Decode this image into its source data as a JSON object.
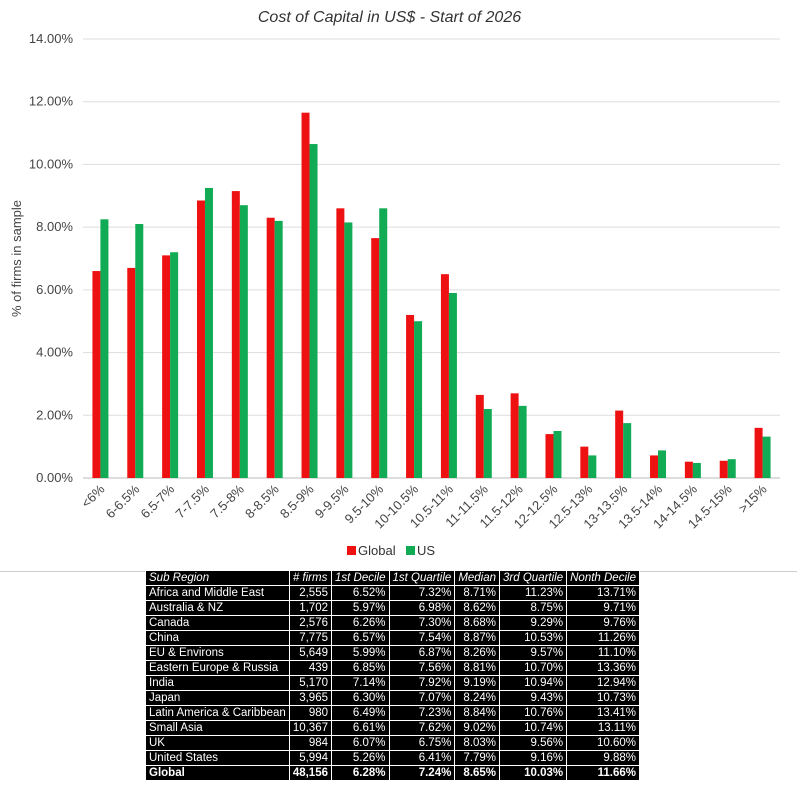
{
  "chart_data": {
    "type": "bar",
    "title": "Cost of Capital in US$ - Start of 2026",
    "ylabel": "% of firms in sample",
    "xlabel": "",
    "ylim": [
      0,
      14
    ],
    "yticks": [
      "0.00%",
      "2.00%",
      "4.00%",
      "6.00%",
      "8.00%",
      "10.00%",
      "12.00%",
      "14.00%"
    ],
    "grid": true,
    "legend_position": "bottom",
    "categories": [
      "<6%",
      "6-6.5%",
      "6.5-7%",
      "7-7.5%",
      "7.5-8%",
      "8-8.5%",
      "8.5-9%",
      "9-9.5%",
      "9.5-10%",
      "10-10.5%",
      "10.5-11%",
      "11-11.5%",
      "11.5-12%",
      "12-12.5%",
      "12.5-13%",
      "13-13.5%",
      "13.5-14%",
      "14-14.5%",
      "14.5-15%",
      ">15%"
    ],
    "series": [
      {
        "name": "Global",
        "color": "#ee1111",
        "values": [
          6.6,
          6.7,
          7.1,
          8.85,
          9.15,
          8.3,
          11.65,
          8.6,
          7.65,
          5.2,
          6.5,
          2.65,
          2.7,
          1.4,
          1.0,
          2.15,
          0.72,
          0.52,
          0.55,
          1.6
        ]
      },
      {
        "name": "US",
        "color": "#11aa55",
        "values": [
          8.25,
          8.1,
          7.2,
          9.25,
          8.7,
          8.2,
          10.65,
          8.15,
          8.6,
          5.0,
          5.9,
          2.2,
          2.3,
          1.5,
          0.72,
          1.75,
          0.88,
          0.48,
          0.6,
          1.32
        ]
      }
    ]
  },
  "table": {
    "headers": [
      "Sub Region",
      "# firms",
      "1st Decile",
      "1st Quartile",
      "Median",
      "3rd Quartile",
      "Nonth Decile"
    ],
    "rows": [
      [
        "Africa and Middle East",
        "2,555",
        "6.52%",
        "7.32%",
        "8.71%",
        "11.23%",
        "13.71%"
      ],
      [
        "Australia & NZ",
        "1,702",
        "5.97%",
        "6.98%",
        "8.62%",
        "8.75%",
        "9.71%"
      ],
      [
        "Canada",
        "2,576",
        "6.26%",
        "7.30%",
        "8.68%",
        "9.29%",
        "9.76%"
      ],
      [
        "China",
        "7,775",
        "6.57%",
        "7.54%",
        "8.87%",
        "10.53%",
        "11.26%"
      ],
      [
        "EU & Environs",
        "5,649",
        "5.99%",
        "6.87%",
        "8.26%",
        "9.57%",
        "11.10%"
      ],
      [
        "Eastern Europe & Russia",
        "439",
        "6.85%",
        "7.56%",
        "8.81%",
        "10.70%",
        "13.36%"
      ],
      [
        "India",
        "5,170",
        "7.14%",
        "7.92%",
        "9.19%",
        "10.94%",
        "12.94%"
      ],
      [
        "Japan",
        "3,965",
        "6.30%",
        "7.07%",
        "8.24%",
        "9.43%",
        "10.73%"
      ],
      [
        "Latin America & Caribbean",
        "980",
        "6.49%",
        "7.23%",
        "8.84%",
        "10.76%",
        "13.41%"
      ],
      [
        "Small Asia",
        "10,367",
        "6.61%",
        "7.62%",
        "9.02%",
        "10.74%",
        "13.11%"
      ],
      [
        "UK",
        "984",
        "6.07%",
        "6.75%",
        "8.03%",
        "9.56%",
        "10.60%"
      ],
      [
        "United States",
        "5,994",
        "5.26%",
        "6.41%",
        "7.79%",
        "9.16%",
        "9.88%"
      ]
    ],
    "total_row": [
      "Global",
      "48,156",
      "6.28%",
      "7.24%",
      "8.65%",
      "10.03%",
      "11.66%"
    ]
  }
}
